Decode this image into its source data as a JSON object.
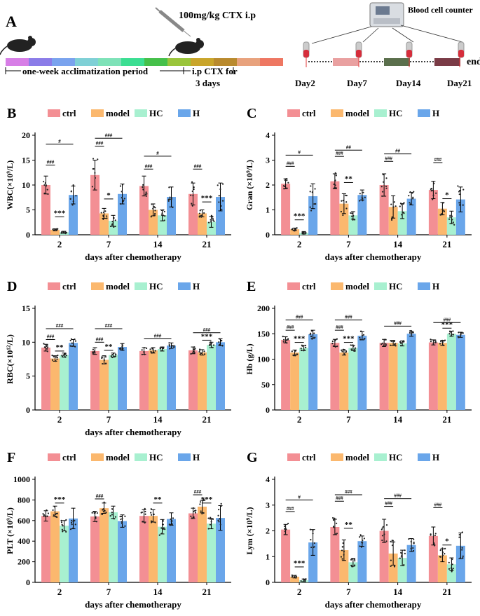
{
  "panel_a": {
    "letter": "A",
    "dose_label": "100mg/kg CTX i.p",
    "counter_label": "Blood cell counter",
    "end_label": "end",
    "acclimatization_label": "one-week acclimatization period",
    "ctx_label_line1": "i.p CTX for",
    "ctx_label_line2": "3 days",
    "day_labels": [
      "Day2",
      "Day7",
      "Day14",
      "Day21"
    ],
    "colors": {
      "week_segments": [
        "#d77ee6",
        "#8b7ce8",
        "#7aa3ee",
        "#7fd0d6",
        "#7ee2b8",
        "#3bde92",
        "#45c04a",
        "#9ac53b",
        "#c9a52b",
        "#b98a2e",
        "#e8a27d",
        "#ee7762"
      ],
      "day_blocks": [
        "#e9a0a0",
        "#5a6f4c",
        "#7a3b46"
      ],
      "syringe_tube": "#d62d3b"
    }
  },
  "legend": {
    "entries": [
      "ctrl",
      "model",
      "HC",
      "H"
    ],
    "colors": [
      "#f38f94",
      "#fbb86e",
      "#a8f0d0",
      "#6aa6ea"
    ]
  },
  "chart_data": [
    {
      "panel": "B",
      "type": "bar",
      "ylabel": "WBC(×10⁹/L)",
      "xlabel": "days after chemotherapy",
      "categories": [
        "2",
        "7",
        "14",
        "21"
      ],
      "ylim": [
        0,
        20
      ],
      "yticks": [
        "0",
        "5",
        "10",
        "15",
        "20"
      ],
      "series": [
        {
          "name": "ctrl",
          "values": [
            10.0,
            12.0,
            9.8,
            8.2
          ],
          "errors": [
            1.8,
            3.0,
            2.0,
            2.2
          ]
        },
        {
          "name": "model",
          "values": [
            1.0,
            4.3,
            5.0,
            4.3
          ],
          "errors": [
            0.2,
            1.0,
            1.2,
            0.7
          ]
        },
        {
          "name": "HC",
          "values": [
            0.5,
            2.8,
            3.9,
            2.6
          ],
          "errors": [
            0.2,
            1.1,
            1.1,
            1.1
          ]
        },
        {
          "name": "H",
          "values": [
            8.0,
            8.2,
            7.6,
            7.6
          ],
          "errors": [
            1.8,
            2.0,
            2.0,
            2.8
          ]
        }
      ],
      "annotations": [
        {
          "text": "###",
          "g": 0,
          "from": 0,
          "to": 1,
          "level": 14.0
        },
        {
          "text": "***",
          "g": 0,
          "from": 1,
          "to": 2,
          "level": 3.6
        },
        {
          "text": "#",
          "g": 0,
          "from": 0,
          "to": 3,
          "level": 18.2
        },
        {
          "text": "###",
          "g": 1,
          "from": 0,
          "to": 1,
          "level": 17.8
        },
        {
          "text": "###",
          "g": 1,
          "from": 0,
          "to": 3,
          "level": 19.4
        },
        {
          "text": "*",
          "g": 1,
          "from": 1,
          "to": 2,
          "level": 7.2
        },
        {
          "text": "###",
          "g": 2,
          "from": 0,
          "to": 1,
          "level": 13.2
        },
        {
          "text": "#",
          "g": 2,
          "from": 0,
          "to": 3,
          "level": 15.8
        },
        {
          "text": "###",
          "g": 3,
          "from": 0,
          "to": 1,
          "level": 13.2
        },
        {
          "text": "***",
          "g": 3,
          "from": 1,
          "to": 2,
          "level": 6.6
        }
      ]
    },
    {
      "panel": "C",
      "type": "bar",
      "ylabel": "Gran (×10⁹/L)",
      "xlabel": "days after chemotherapy",
      "categories": [
        "2",
        "7",
        "14",
        "21"
      ],
      "ylim": [
        0,
        4
      ],
      "yticks": [
        "0",
        "1",
        "2",
        "3",
        "4"
      ],
      "series": [
        {
          "name": "ctrl",
          "values": [
            2.05,
            2.15,
            2.0,
            1.8
          ],
          "errors": [
            0.2,
            0.3,
            0.45,
            0.35
          ]
        },
        {
          "name": "model",
          "values": [
            0.22,
            1.25,
            1.12,
            1.05
          ],
          "errors": [
            0.05,
            0.4,
            0.45,
            0.25
          ]
        },
        {
          "name": "HC",
          "values": [
            0.08,
            0.78,
            0.95,
            0.7
          ],
          "errors": [
            0.05,
            0.15,
            0.3,
            0.25
          ]
        },
        {
          "name": "H",
          "values": [
            1.55,
            1.6,
            1.45,
            1.42
          ],
          "errors": [
            0.5,
            0.2,
            0.25,
            0.5
          ]
        }
      ],
      "annotations": [
        {
          "text": "###",
          "g": 0,
          "from": 0,
          "to": 1,
          "level": 2.75
        },
        {
          "text": "***",
          "g": 0,
          "from": 1,
          "to": 2,
          "level": 0.6
        },
        {
          "text": "#",
          "g": 0,
          "from": 0,
          "to": 3,
          "level": 3.2
        },
        {
          "text": "###",
          "g": 1,
          "from": 0,
          "to": 1,
          "level": 3.15
        },
        {
          "text": "##",
          "g": 1,
          "from": 0,
          "to": 3,
          "level": 3.4
        },
        {
          "text": "**",
          "g": 1,
          "from": 1,
          "to": 2,
          "level": 2.1
        },
        {
          "text": "###",
          "g": 2,
          "from": 0,
          "to": 1,
          "level": 2.95
        },
        {
          "text": "##",
          "g": 2,
          "from": 0,
          "to": 3,
          "level": 3.25
        },
        {
          "text": "###",
          "g": 3,
          "from": 0,
          "to": 1,
          "level": 2.9
        },
        {
          "text": "*",
          "g": 3,
          "from": 1,
          "to": 2,
          "level": 1.45
        }
      ]
    },
    {
      "panel": "D",
      "type": "bar",
      "ylabel": "RBC(×10¹²/L)",
      "xlabel": "days after chemotherapy",
      "categories": [
        "2",
        "7",
        "14",
        "21"
      ],
      "ylim": [
        0,
        15
      ],
      "yticks": [
        "0",
        "5",
        "10",
        "15"
      ],
      "series": [
        {
          "name": "ctrl",
          "values": [
            9.2,
            8.7,
            8.7,
            8.8
          ],
          "errors": [
            0.5,
            0.5,
            0.5,
            0.5
          ]
        },
        {
          "name": "model",
          "values": [
            7.6,
            7.4,
            8.8,
            8.5
          ],
          "errors": [
            0.4,
            0.6,
            0.4,
            0.4
          ]
        },
        {
          "name": "HC",
          "values": [
            8.1,
            8.1,
            9.0,
            9.6
          ],
          "errors": [
            0.3,
            0.3,
            0.3,
            0.4
          ]
        },
        {
          "name": "H",
          "values": [
            9.9,
            9.3,
            9.5,
            10.0
          ],
          "errors": [
            0.5,
            0.5,
            0.4,
            0.5
          ]
        }
      ],
      "annotations": [
        {
          "text": "###",
          "g": 0,
          "from": 0,
          "to": 1,
          "level": 10.4
        },
        {
          "text": "**",
          "g": 0,
          "from": 1,
          "to": 2,
          "level": 8.7
        },
        {
          "text": "###",
          "g": 0,
          "from": 0,
          "to": 3,
          "level": 12.0
        },
        {
          "text": "###",
          "g": 1,
          "from": 0,
          "to": 1,
          "level": 10.0
        },
        {
          "text": "**",
          "g": 1,
          "from": 1,
          "to": 2,
          "level": 8.8
        },
        {
          "text": "###",
          "g": 1,
          "from": 0,
          "to": 3,
          "level": 12.0
        },
        {
          "text": "###",
          "g": 2,
          "from": 0,
          "to": 3,
          "level": 10.5
        },
        {
          "text": "###",
          "g": 3,
          "from": 0,
          "to": 3,
          "level": 11.4
        },
        {
          "text": "***",
          "g": 3,
          "from": 1,
          "to": 2,
          "level": 10.3
        }
      ]
    },
    {
      "panel": "E",
      "type": "bar",
      "ylabel": "Hb (g/L)",
      "xlabel": "",
      "categories": [
        "2",
        "7",
        "14",
        "21"
      ],
      "ylim": [
        0,
        200
      ],
      "yticks": [
        "0",
        "50",
        "100",
        "150",
        "200"
      ],
      "series": [
        {
          "name": "ctrl",
          "values": [
            138,
            132,
            132,
            133
          ],
          "errors": [
            6,
            7,
            7,
            5
          ]
        },
        {
          "name": "model",
          "values": [
            113,
            113,
            132,
            132
          ],
          "errors": [
            5,
            5,
            5,
            5
          ]
        },
        {
          "name": "HC",
          "values": [
            122,
            122,
            131,
            150
          ],
          "errors": [
            5,
            5,
            5,
            5
          ]
        },
        {
          "name": "H",
          "values": [
            149,
            146,
            150,
            148
          ],
          "errors": [
            8,
            8,
            5,
            5
          ]
        }
      ],
      "annotations": [
        {
          "text": "###",
          "g": 0,
          "from": 0,
          "to": 1,
          "level": 157
        },
        {
          "text": "***",
          "g": 0,
          "from": 1,
          "to": 2,
          "level": 133
        },
        {
          "text": "###",
          "g": 0,
          "from": 0,
          "to": 3,
          "level": 177
        },
        {
          "text": "###",
          "g": 1,
          "from": 0,
          "to": 1,
          "level": 157
        },
        {
          "text": "***",
          "g": 1,
          "from": 1,
          "to": 2,
          "level": 133
        },
        {
          "text": "###",
          "g": 1,
          "from": 0,
          "to": 3,
          "level": 177
        },
        {
          "text": "###",
          "g": 2,
          "from": 0,
          "to": 3,
          "level": 165
        },
        {
          "text": "###",
          "g": 3,
          "from": 0,
          "to": 3,
          "level": 172
        },
        {
          "text": "***",
          "g": 3,
          "from": 1,
          "to": 2,
          "level": 161
        }
      ]
    },
    {
      "panel": "F",
      "type": "bar",
      "ylabel": "PLT (×10⁹/L)",
      "xlabel": "days after chemotherapy",
      "categories": [
        "2",
        "7",
        "14",
        "21"
      ],
      "ylim": [
        0,
        1000
      ],
      "yticks": [
        "0",
        "200",
        "400",
        "600",
        "800",
        "1000"
      ],
      "series": [
        {
          "name": "ctrl",
          "values": [
            645,
            640,
            645,
            670
          ],
          "errors": [
            50,
            50,
            60,
            50
          ]
        },
        {
          "name": "model",
          "values": [
            690,
            720,
            645,
            735
          ],
          "errors": [
            50,
            50,
            60,
            60
          ]
        },
        {
          "name": "HC",
          "values": [
            550,
            680,
            540,
            570
          ],
          "errors": [
            50,
            60,
            70,
            50
          ]
        },
        {
          "name": "H",
          "values": [
            620,
            595,
            615,
            625
          ],
          "errors": [
            100,
            60,
            60,
            120
          ]
        }
      ],
      "annotations": [
        {
          "text": "***",
          "g": 0,
          "from": 1,
          "to": 2,
          "level": 770
        },
        {
          "text": "###",
          "g": 1,
          "from": 0,
          "to": 1,
          "level": 810
        },
        {
          "text": "**",
          "g": 2,
          "from": 1,
          "to": 2,
          "level": 770
        },
        {
          "text": "###",
          "g": 3,
          "from": 0,
          "to": 1,
          "level": 850
        },
        {
          "text": "***",
          "g": 3,
          "from": 1,
          "to": 2,
          "level": 770
        }
      ]
    },
    {
      "panel": "G",
      "type": "bar",
      "ylabel": "Lym (×10⁹/L)",
      "xlabel": "days after chemotherapy",
      "categories": [
        "2",
        "7",
        "14",
        "21"
      ],
      "ylim": [
        0,
        4
      ],
      "yticks": [
        "0",
        "1",
        "2",
        "3",
        "4"
      ],
      "series": [
        {
          "name": "ctrl",
          "values": [
            2.05,
            2.15,
            2.0,
            1.8
          ],
          "errors": [
            0.2,
            0.3,
            0.45,
            0.35
          ]
        },
        {
          "name": "model",
          "values": [
            0.22,
            1.25,
            1.12,
            1.05
          ],
          "errors": [
            0.05,
            0.4,
            0.45,
            0.25
          ]
        },
        {
          "name": "HC",
          "values": [
            0.08,
            0.78,
            0.95,
            0.7
          ],
          "errors": [
            0.05,
            0.15,
            0.3,
            0.25
          ]
        },
        {
          "name": "H",
          "values": [
            1.55,
            1.6,
            1.45,
            1.42
          ],
          "errors": [
            0.5,
            0.2,
            0.25,
            0.5
          ]
        }
      ],
      "annotations": [
        {
          "text": "###",
          "g": 0,
          "from": 0,
          "to": 1,
          "level": 2.75
        },
        {
          "text": "***",
          "g": 0,
          "from": 1,
          "to": 2,
          "level": 0.6
        },
        {
          "text": "#",
          "g": 0,
          "from": 0,
          "to": 3,
          "level": 3.2
        },
        {
          "text": "###",
          "g": 1,
          "from": 0,
          "to": 1,
          "level": 3.15
        },
        {
          "text": "###",
          "g": 1,
          "from": 0,
          "to": 3,
          "level": 3.4
        },
        {
          "text": "**",
          "g": 1,
          "from": 1,
          "to": 2,
          "level": 2.1
        },
        {
          "text": "###",
          "g": 2,
          "from": 0,
          "to": 1,
          "level": 2.95
        },
        {
          "text": "###",
          "g": 2,
          "from": 0,
          "to": 3,
          "level": 3.25
        },
        {
          "text": "###",
          "g": 3,
          "from": 0,
          "to": 1,
          "level": 2.9
        },
        {
          "text": "*",
          "g": 3,
          "from": 1,
          "to": 2,
          "level": 1.45
        }
      ]
    }
  ]
}
